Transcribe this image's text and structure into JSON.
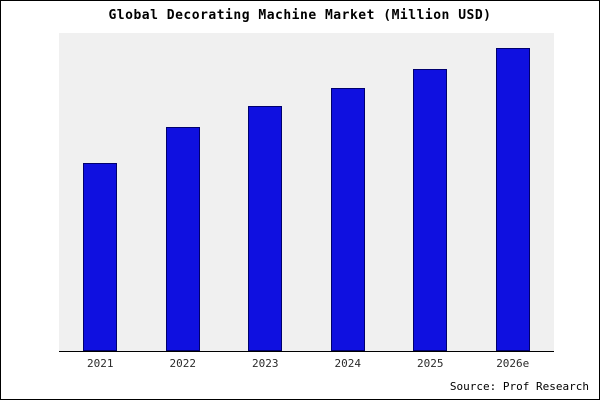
{
  "chart_data": {
    "type": "bar",
    "title": "Global Decorating Machine Market (Million USD)",
    "categories": [
      "2021",
      "2022",
      "2023",
      "2024",
      "2025",
      "2026e"
    ],
    "values": [
      62,
      74,
      81,
      87,
      93,
      100
    ],
    "ylim": [
      0,
      105
    ],
    "xlabel": "",
    "ylabel": "",
    "grid": false,
    "legend": "none",
    "bar_color": "#0f10e0",
    "bar_edge_color": "#00006e",
    "plot_background": "#f0f0f0",
    "source": "Source: Prof Research"
  }
}
